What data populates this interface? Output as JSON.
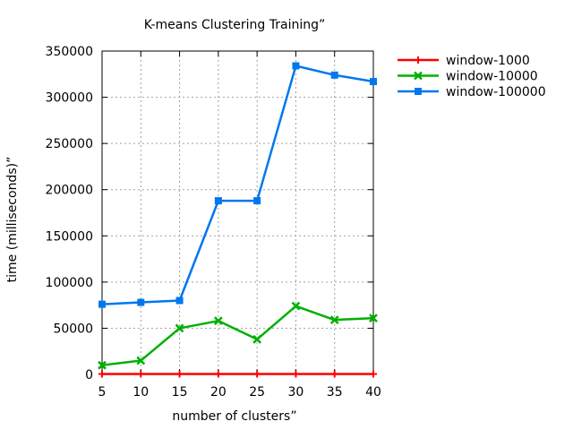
{
  "chart_data": {
    "type": "line",
    "title": "K-means Clustering Training”",
    "xlabel": "number of clusters”",
    "ylabel": "time (milliseconds)”",
    "x": [
      5,
      10,
      15,
      20,
      25,
      30,
      35,
      40
    ],
    "xlim": [
      5,
      40
    ],
    "ylim": [
      0,
      350000
    ],
    "xticks": [
      "5",
      "10",
      "15",
      "20",
      "25",
      "30",
      "35",
      "40"
    ],
    "yticks": [
      "0",
      "50000",
      "100000",
      "150000",
      "200000",
      "250000",
      "300000",
      "350000"
    ],
    "xtick_values": [
      5,
      10,
      15,
      20,
      25,
      30,
      35,
      40
    ],
    "ytick_values": [
      0,
      50000,
      100000,
      150000,
      200000,
      250000,
      300000,
      350000
    ],
    "grid": true,
    "legend_position": "top-right outside",
    "series": [
      {
        "name": "window-1000",
        "color": "#ff0000",
        "marker": "plus",
        "values": [
          500,
          500,
          500,
          500,
          500,
          500,
          500,
          500
        ]
      },
      {
        "name": "window-10000",
        "color": "#00b000",
        "marker": "x",
        "values": [
          10000,
          15000,
          50000,
          58000,
          38000,
          74000,
          59000,
          61000
        ]
      },
      {
        "name": "window-100000",
        "color": "#0077ee",
        "marker": "square",
        "values": [
          76000,
          78000,
          80000,
          188000,
          188000,
          334000,
          324000,
          317000
        ]
      }
    ]
  }
}
